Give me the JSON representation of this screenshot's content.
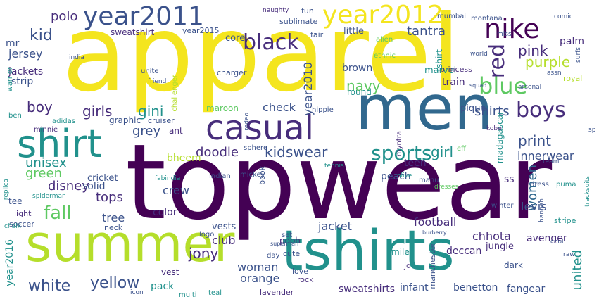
{
  "cloud": {
    "colors": {
      "yellow": "#f4e51e",
      "lime": "#b5de2b",
      "green": "#5ec962",
      "teal": "#21918c",
      "blue": "#31688e",
      "indigo": "#3b528b",
      "violet": "#472d7b",
      "purple": "#440154",
      "aqua": "#35b779"
    },
    "words": {
      "topwear": "topwear",
      "apparel": "apparel",
      "men": "men",
      "summer": "summer",
      "tshirts": "tshirts",
      "casual": "casual",
      "shirt": "shirt",
      "year2011": "year2011",
      "year2012": "year2012",
      "black": "black",
      "nike": "nike",
      "blue": "blue",
      "red": "red",
      "boys": "boys",
      "sports": "sports",
      "kid": "kid",
      "polo": "polo",
      "fall": "fall",
      "girls": "girls",
      "gini": "gini",
      "pink": "pink",
      "purple": "purple",
      "kidswear": "kidswear",
      "navy": "navy",
      "tantra": "tantra",
      "boy": "boy",
      "green": "green",
      "grey": "grey",
      "girl": "girl",
      "jersey": "jersey",
      "year2010": "year2010",
      "brown": "brown",
      "jackets": "jackets",
      "strip": "strip",
      "unisex": "unisex",
      "disney": "disney",
      "doodle": "doodle",
      "print": "print",
      "white": "white",
      "yellow": "yellow",
      "woman": "woman",
      "orange": "orange",
      "jony": "jony",
      "women": "women",
      "innerwear": "innerwear",
      "check": "check",
      "shirts": "shirts",
      "tops": "tops",
      "crew": "crew",
      "tree": "tree",
      "levis": "levis",
      "jacket": "jacket",
      "football": "football",
      "chhota": "chhota",
      "sweatshirts": "sweatshirts",
      "infant": "infant",
      "benetton": "benetton",
      "fangear": "fangear",
      "club": "club",
      "avenger": "avenger",
      "united": "united",
      "year2016": "year2016",
      "solid": "solid",
      "sweatshirt": "sweatshirt",
      "core": "core",
      "little": "little",
      "train": "train",
      "palm": "palm",
      "teen": "teen",
      "bheem": "bheem",
      "cricket": "cricket",
      "color": "color",
      "pack": "pack",
      "vest": "vest",
      "vests": "vests",
      "ss": "ss",
      "pique": "pique",
      "maroon": "maroon",
      "graphic": "graphic",
      "mr": "mr",
      "cruiser": "cruiser",
      "peach": "peach",
      "madagascar": "madagascar",
      "tshirt": "tshirt",
      "round": "round",
      "deccan": "deccan",
      "marvel": "marvel",
      "jungle": "jungle",
      "dark": "dark",
      "tee": "tee",
      "soccer": "soccer",
      "light": "light",
      "neck": "neck",
      "pooh": "pooh",
      "cute": "cute",
      "love": "love",
      "rock": "rock",
      "miler": "miler",
      "jdi": "jdi",
      "manchester": "manchester",
      "year2015": "year2015",
      "fun": "fun",
      "fair": "fair",
      "sublimate": "sublimate",
      "charger": "charger",
      "adidas": "adidas",
      "minnie": "minnie",
      "ant": "ant",
      "royal": "royal",
      "princess": "princess",
      "india": "india",
      "stripe": "stripe",
      "book": "book",
      "indian": "indian",
      "mickey": "mickey",
      "manu": "manu",
      "olive": "olive",
      "dresses": "dresses",
      "puma": "puma",
      "dress": "dress",
      "comic": "comic",
      "arsenal": "arsenal",
      "spider": "spider",
      "logo": "logo",
      "lavender": "lavender",
      "teal": "teal",
      "multi": "multi",
      "icon": "icon",
      "replica": "replica",
      "chalk": "chalk",
      "spiderman": "spiderman",
      "hippie": "hippie",
      "myntra": "myntra",
      "mumbai": "mumbai",
      "montana": "montana",
      "naughty": "naughty",
      "sphere": "sphere",
      "unite": "unite",
      "friend": "friend",
      "challenger": "challenger",
      "winter": "winter",
      "team": "team",
      "kobe": "kobe",
      "rodeo": "rodeo",
      "alien": "alien",
      "ethnic": "ethnic",
      "world": "world",
      "miss": "miss",
      "assn": "assn",
      "ben": "ben",
      "warrior": "warrior",
      "fabindia": "fabindia",
      "day": "day",
      "set": "set",
      "superman": "superman",
      "burberry": "burberry",
      "hannah": "hannah",
      "tracksuits": "tracksuits",
      "raw": "raw",
      "cool": "cool",
      "tennis": "tennis",
      "sp": "sp",
      "squad": "squad",
      "eff": "eff",
      "surfs": "surfs"
    }
  }
}
